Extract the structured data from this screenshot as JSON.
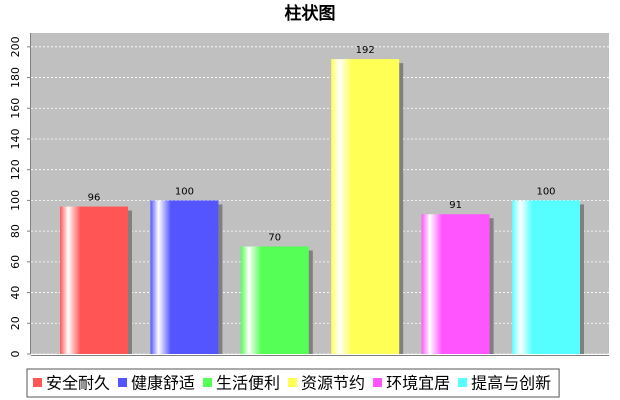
{
  "chart_data": {
    "type": "bar",
    "title": "柱状图",
    "series": [
      {
        "name": "安全耐久",
        "color": "#ff5555",
        "values": [
          96
        ]
      },
      {
        "name": "健康舒适",
        "color": "#5555ff",
        "values": [
          100
        ]
      },
      {
        "name": "生活便利",
        "color": "#55ff55",
        "values": [
          70
        ]
      },
      {
        "name": "资源节约",
        "color": "#ffff55",
        "values": [
          192
        ]
      },
      {
        "name": "环境宜居",
        "color": "#ff55ff",
        "values": [
          91
        ]
      },
      {
        "name": "提高与创新",
        "color": "#55ffff",
        "values": [
          100
        ]
      }
    ],
    "ylim": [
      0,
      209
    ],
    "yticks": [
      0,
      20,
      40,
      60,
      80,
      100,
      120,
      140,
      160,
      180,
      200
    ],
    "grid": true,
    "legend": "bottom"
  }
}
